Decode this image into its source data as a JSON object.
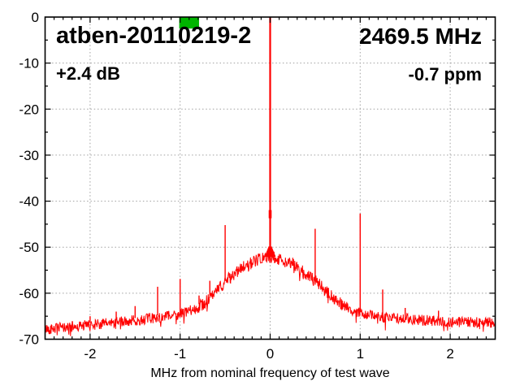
{
  "header": {
    "title": "atben-20110219-2",
    "frequency": "2469.5 MHz",
    "gain": "+2.4 dB",
    "ppm_offset": "-0.7 ppm"
  },
  "chart_data": {
    "type": "line",
    "title": "atben-20110219-2",
    "xlabel": "MHz from nominal frequency of test wave",
    "ylabel": "",
    "xlim": [
      -2.5,
      2.5
    ],
    "ylim": [
      -70,
      0
    ],
    "xticks": [
      -2,
      -1,
      0,
      1,
      2
    ],
    "yticks": [
      0,
      -10,
      -20,
      -30,
      -40,
      -50,
      -60,
      -70
    ],
    "minor_xtick_step": 0.1,
    "minor_ytick_step": 5,
    "grid": true,
    "grid_color": "#a0a0a0",
    "trace_color": "#ff0000",
    "noise_amplitude_db": 1.15,
    "pedestal_noise_amplitude_db": 1.35,
    "carrier_peak": {
      "freq": 0.0,
      "level_db": 0.0,
      "node_db": -42.3,
      "cone_top_db": -49.8,
      "cone_base_db": -52.1
    },
    "pedestal_envelope": {
      "f": [
        -2.5,
        -2.25,
        -2.0,
        -1.75,
        -1.5,
        -1.25,
        -1.0,
        -0.9,
        -0.8,
        -0.7,
        -0.6,
        -0.5,
        -0.4,
        -0.3,
        -0.25,
        -0.2,
        -0.15,
        -0.1,
        -0.05,
        0.0,
        0.05,
        0.1,
        0.15,
        0.2,
        0.25,
        0.3,
        0.4,
        0.5,
        0.6,
        0.7,
        0.8,
        0.9,
        1.0,
        1.25,
        1.5,
        1.75,
        2.0,
        2.25,
        2.5
      ],
      "db": [
        -67.8,
        -67.4,
        -66.9,
        -66.4,
        -65.9,
        -65.3,
        -64.6,
        -63.9,
        -63.0,
        -61.7,
        -59.8,
        -57.4,
        -55.9,
        -54.4,
        -53.9,
        -53.3,
        -52.9,
        -52.6,
        -52.3,
        -52.1,
        -52.3,
        -52.6,
        -53.0,
        -53.4,
        -53.6,
        -54.3,
        -56.0,
        -57.3,
        -59.2,
        -61.0,
        -62.4,
        -63.6,
        -64.4,
        -65.2,
        -65.6,
        -65.9,
        -66.2,
        -66.3,
        -66.4
      ]
    },
    "spurs": [
      {
        "freq": -2.0,
        "level_db": -65.0
      },
      {
        "freq": -1.71,
        "level_db": -64.0
      },
      {
        "freq": -1.5,
        "level_db": -62.8
      },
      {
        "freq": -1.34,
        "level_db": -64.3
      },
      {
        "freq": -1.25,
        "level_db": -58.6
      },
      {
        "freq": -1.0,
        "level_db": -56.9
      },
      {
        "freq": -0.79,
        "level_db": -60.5
      },
      {
        "freq": -0.67,
        "level_db": -57.3
      },
      {
        "freq": -0.5,
        "level_db": -45.2
      },
      {
        "freq": 0.5,
        "level_db": -46.0
      },
      {
        "freq": 0.75,
        "level_db": -61.3
      },
      {
        "freq": 1.0,
        "level_db": -42.7
      },
      {
        "freq": 1.25,
        "level_db": -59.2
      },
      {
        "freq": 1.5,
        "level_db": -63.2
      },
      {
        "freq": 1.87,
        "level_db": -63.8
      }
    ],
    "marker": {
      "color": "#00b400",
      "f_start": -1.01,
      "f_end": -0.79,
      "db_top": 0.0,
      "db_bottom": -2.5
    },
    "legend": "none"
  }
}
